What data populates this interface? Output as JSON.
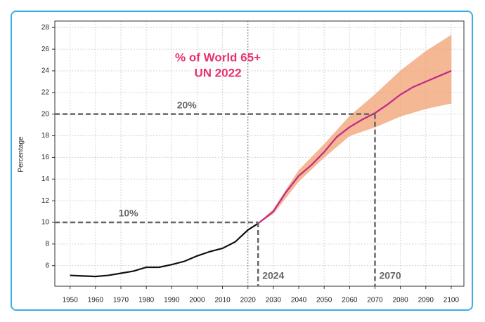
{
  "chart_data": {
    "type": "line",
    "title": "% of World 65+",
    "subtitle": "UN 2022",
    "title_color": "#e8336e",
    "y_label": "Percentage",
    "xlim": [
      1944,
      2105
    ],
    "ylim": [
      4.1,
      28.6
    ],
    "xticks": [
      1950,
      1960,
      1970,
      1980,
      1990,
      2000,
      2010,
      2020,
      2030,
      2040,
      2050,
      2060,
      2070,
      2080,
      2090,
      2100
    ],
    "yticks": [
      6,
      8,
      10,
      12,
      14,
      16,
      18,
      20,
      22,
      24,
      26,
      28
    ],
    "grid": true,
    "series": [
      {
        "color": "#111111",
        "x": [
          1950,
          1955,
          1960,
          1965,
          1970,
          1975,
          1980,
          1985,
          1990,
          1995,
          2000,
          2005,
          2010,
          2015,
          2020,
          2024
        ],
        "values": [
          5.1,
          5.05,
          5.0,
          5.1,
          5.3,
          5.5,
          5.85,
          5.85,
          6.1,
          6.4,
          6.9,
          7.3,
          7.6,
          8.2,
          9.3,
          9.9
        ]
      },
      {
        "color": "#c2288a",
        "x": [
          2024,
          2030,
          2035,
          2040,
          2045,
          2050,
          2055,
          2060,
          2065,
          2070,
          2075,
          2080,
          2085,
          2090,
          2095,
          2100
        ],
        "values": [
          9.9,
          11.0,
          12.8,
          14.3,
          15.3,
          16.5,
          17.9,
          18.8,
          19.5,
          20.1,
          20.9,
          21.8,
          22.5,
          23.0,
          23.5,
          24.0
        ]
      }
    ],
    "band": {
      "color": "#f0a070",
      "x": [
        2024,
        2030,
        2040,
        2050,
        2060,
        2070,
        2080,
        2090,
        2100
      ],
      "upper": [
        9.9,
        11.2,
        14.8,
        17.2,
        19.8,
        21.8,
        24.0,
        25.8,
        27.3
      ],
      "lower": [
        9.9,
        10.8,
        13.8,
        16.0,
        18.0,
        18.8,
        19.8,
        20.5,
        21.0
      ]
    },
    "current_year": 2020,
    "markers": [
      {
        "x": 2070,
        "y": 20,
        "label": "20%"
      },
      {
        "x": 2024,
        "y": 10,
        "label": "10%"
      }
    ]
  }
}
